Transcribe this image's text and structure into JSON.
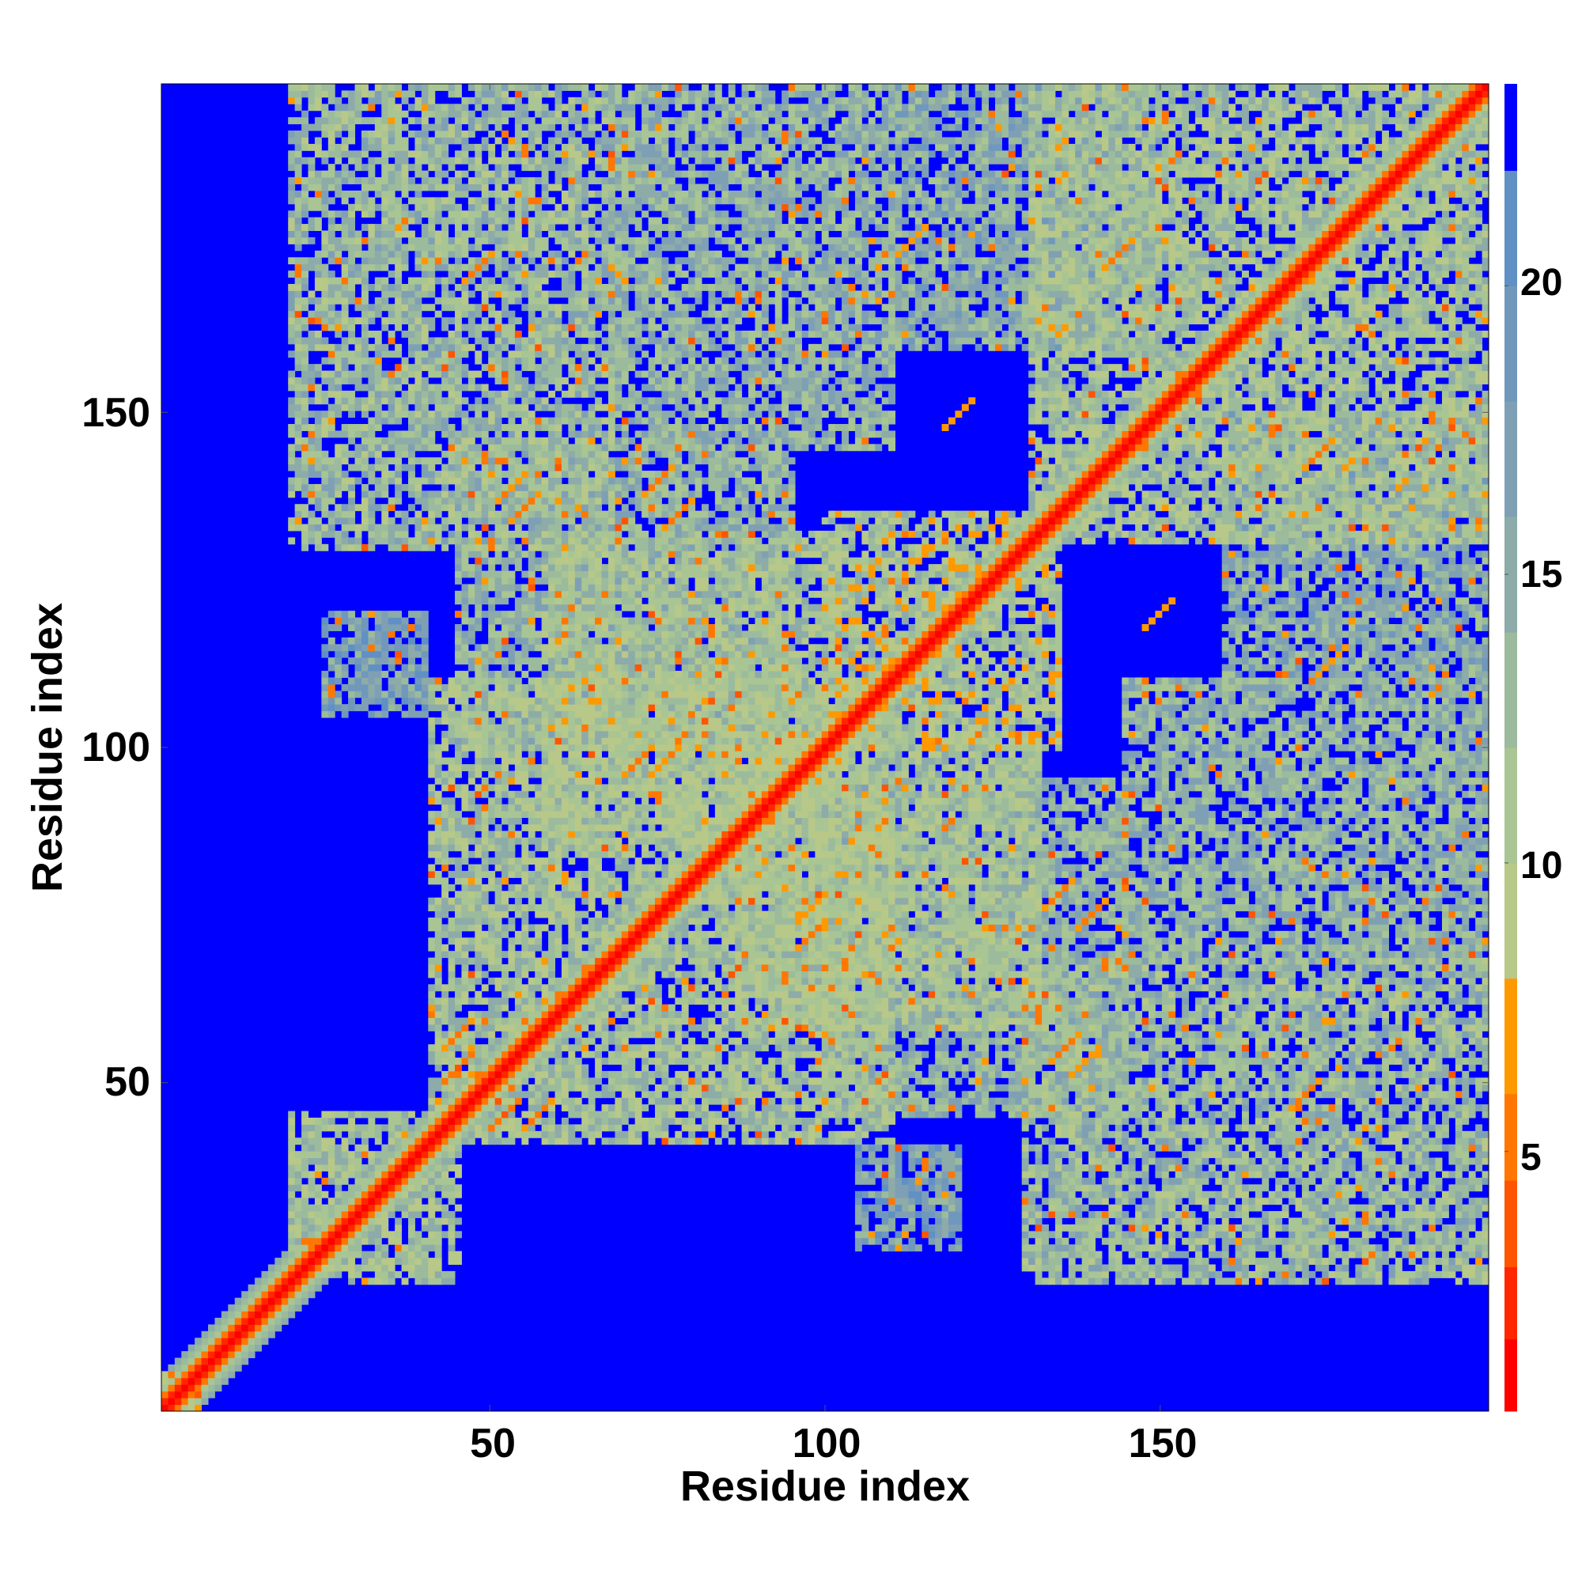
{
  "chart_data": {
    "type": "heatmap",
    "title": "",
    "xlabel": "Residue index",
    "ylabel": "Residue index",
    "n_residues": 199,
    "xlim": [
      1,
      199
    ],
    "ylim": [
      1,
      199
    ],
    "x_ticks": [
      50,
      100,
      150
    ],
    "y_ticks": [
      50,
      100,
      150
    ],
    "x_tick_labels": [
      "50",
      "100",
      "150"
    ],
    "y_tick_labels": [
      "50",
      "100",
      "150"
    ],
    "colorbar": {
      "range": [
        0.5,
        23.5
      ],
      "ticks": [
        5,
        10,
        15,
        20
      ],
      "tick_labels": [
        "5",
        "10",
        "15",
        "20"
      ],
      "bands": [
        {
          "from": 0.5,
          "to": 1.75,
          "color": "#ff0000"
        },
        {
          "from": 1.75,
          "to": 3.0,
          "color": "#ff2600"
        },
        {
          "from": 3.0,
          "to": 4.5,
          "color": "#ff5500"
        },
        {
          "from": 4.5,
          "to": 6.0,
          "color": "#ff7700"
        },
        {
          "from": 6.0,
          "to": 8.0,
          "color": "#ff9900"
        },
        {
          "from": 8.0,
          "to": 10.0,
          "color": "#b8c888"
        },
        {
          "from": 10.0,
          "to": 12.0,
          "color": "#a9c594"
        },
        {
          "from": 12.0,
          "to": 14.0,
          "color": "#9bbb9c"
        },
        {
          "from": 14.0,
          "to": 16.0,
          "color": "#8daba8"
        },
        {
          "from": 16.0,
          "to": 18.0,
          "color": "#7fa0b4"
        },
        {
          "from": 18.0,
          "to": 20.0,
          "color": "#7098bd"
        },
        {
          "from": 20.0,
          "to": 22.0,
          "color": "#6090c4"
        },
        {
          "from": 22.0,
          "to": 23.5,
          "color": "#0000ff"
        }
      ]
    },
    "background_color": "#0000ff",
    "diagonal": {
      "from": 1,
      "to": 199,
      "value": 0.5,
      "color": "#ff0000"
    },
    "contact_regions": [
      {
        "x": [
          1,
          6
        ],
        "y": [
          1,
          6
        ],
        "value": 8
      },
      {
        "x": [
          20,
          45
        ],
        "y": [
          20,
          45
        ],
        "value": 12
      },
      {
        "x": [
          41,
          110
        ],
        "y": [
          41,
          110
        ],
        "value": 12
      },
      {
        "x": [
          58,
          102
        ],
        "y": [
          85,
          132
        ],
        "value": 12
      },
      {
        "x": [
          85,
          132
        ],
        "y": [
          58,
          102
        ],
        "value": 12
      },
      {
        "x": [
          100,
          135
        ],
        "y": [
          100,
          135
        ],
        "value": 11
      },
      {
        "x": [
          131,
          199
        ],
        "y": [
          131,
          199
        ],
        "value": 12
      },
      {
        "x": [
          20,
          68
        ],
        "y": [
          130,
          199
        ],
        "value": 13
      },
      {
        "x": [
          130,
          199
        ],
        "y": [
          20,
          68
        ],
        "value": 13
      },
      {
        "x": [
          68,
          110
        ],
        "y": [
          145,
          199
        ],
        "value": 14
      },
      {
        "x": [
          145,
          199
        ],
        "y": [
          68,
          110
        ],
        "value": 14
      },
      {
        "x": [
          100,
          145
        ],
        "y": [
          45,
          95
        ],
        "value": 14
      },
      {
        "x": [
          45,
          95
        ],
        "y": [
          100,
          145
        ],
        "value": 14
      },
      {
        "x": [
          160,
          199
        ],
        "y": [
          110,
          150
        ],
        "value": 15
      },
      {
        "x": [
          110,
          150
        ],
        "y": [
          160,
          199
        ],
        "value": 15
      },
      {
        "x": [
          25,
          40
        ],
        "y": [
          105,
          120
        ],
        "value": 17
      },
      {
        "x": [
          105,
          120
        ],
        "y": [
          25,
          40
        ],
        "value": 17
      }
    ],
    "close_contacts": [
      {
        "x": 45,
        "y": 57,
        "value": 5
      },
      {
        "x": 57,
        "y": 45,
        "value": 5
      },
      {
        "x": 52,
        "y": 45,
        "value": 4
      },
      {
        "x": 45,
        "y": 52,
        "value": 4
      },
      {
        "x": 72,
        "y": 98,
        "value": 5
      },
      {
        "x": 98,
        "y": 72,
        "value": 5
      },
      {
        "x": 98,
        "y": 76,
        "value": 6
      },
      {
        "x": 76,
        "y": 98,
        "value": 6
      },
      {
        "x": 53,
        "y": 139,
        "value": 6
      },
      {
        "x": 139,
        "y": 53,
        "value": 6
      },
      {
        "x": 75,
        "y": 140,
        "value": 5
      },
      {
        "x": 140,
        "y": 75,
        "value": 5
      },
      {
        "x": 135,
        "y": 78,
        "value": 5
      },
      {
        "x": 78,
        "y": 135,
        "value": 5
      },
      {
        "x": 136,
        "y": 55,
        "value": 5
      },
      {
        "x": 55,
        "y": 136,
        "value": 5
      },
      {
        "x": 176,
        "y": 113,
        "value": 6
      },
      {
        "x": 113,
        "y": 176,
        "value": 6
      },
      {
        "x": 150,
        "y": 120,
        "value": 6
      },
      {
        "x": 120,
        "y": 150,
        "value": 6
      },
      {
        "x": 174,
        "y": 144,
        "value": 5
      },
      {
        "x": 144,
        "y": 174,
        "value": 5
      },
      {
        "x": 172,
        "y": 48,
        "value": 5
      },
      {
        "x": 48,
        "y": 172,
        "value": 5
      }
    ]
  }
}
